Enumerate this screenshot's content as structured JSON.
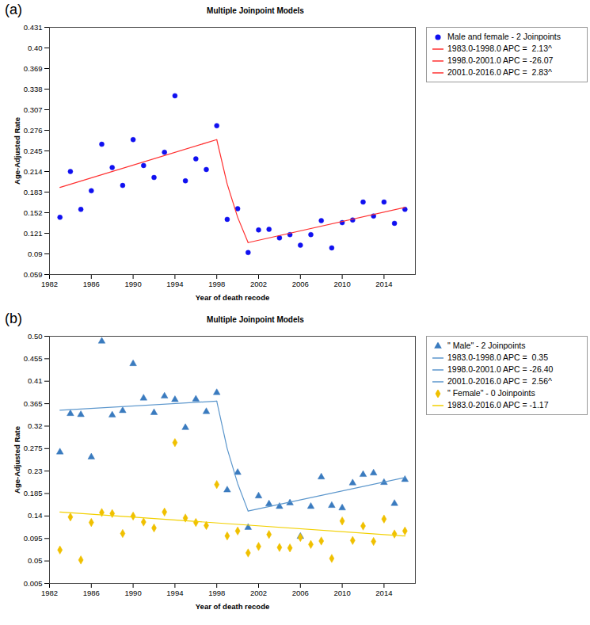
{
  "chart_data": [
    {
      "type": "scatter",
      "panel_label": "(a)",
      "title": "Multiple Joinpoint Models",
      "x_label": "Year of death recode",
      "y_label": "Age-Adjusted Rate",
      "legend": "right",
      "xlim": [
        1982,
        2017
      ],
      "xticks": [
        1982,
        1986,
        1990,
        1994,
        1998,
        2002,
        2006,
        2010,
        2014
      ],
      "ylim": [
        0.059,
        0.431
      ],
      "yticks": [
        0.059,
        0.09,
        0.121,
        0.152,
        0.183,
        0.214,
        0.245,
        0.276,
        0.307,
        0.338,
        0.369,
        {
          "value": 0.4,
          "label": "0.40"
        },
        0.431
      ],
      "series": [
        {
          "name": "Male and female - 2 Joinpoints",
          "type": "scatter",
          "marker": "circle",
          "color": "#1010f0",
          "x": [
            1983,
            1984,
            1985,
            1986,
            1987,
            1988,
            1989,
            1990,
            1991,
            1992,
            1993,
            1994,
            1995,
            1996,
            1997,
            1998,
            1999,
            2000,
            2001,
            2002,
            2003,
            2004,
            2005,
            2006,
            2007,
            2008,
            2009,
            2010,
            2011,
            2012,
            2013,
            2014,
            2015,
            2016
          ],
          "values": [
            0.145,
            0.214,
            0.157,
            0.185,
            0.255,
            0.22,
            0.193,
            0.262,
            0.223,
            0.205,
            0.243,
            0.328,
            0.2,
            0.233,
            0.217,
            0.283,
            0.142,
            0.158,
            0.092,
            0.126,
            0.127,
            0.114,
            0.119,
            0.103,
            0.119,
            0.14,
            0.099,
            0.137,
            0.141,
            0.168,
            0.147,
            0.168,
            0.136,
            0.157
          ]
        },
        {
          "name": "1983.0-1998.0 APC =  2.13^",
          "type": "line",
          "color": "#ff3030",
          "x": [
            1983,
            1998
          ],
          "values": [
            0.19,
            0.262
          ]
        },
        {
          "name": "1998.0-2001.0 APC = -26.07",
          "type": "line",
          "color": "#ff3030",
          "x": [
            1998,
            1999,
            2000,
            2001
          ],
          "values": [
            0.262,
            0.195,
            0.145,
            0.107
          ]
        },
        {
          "name": "2001.0-2016.0 APC =  2.83^",
          "type": "line",
          "color": "#ff3030",
          "x": [
            2001,
            2016
          ],
          "values": [
            0.107,
            0.16
          ]
        }
      ]
    },
    {
      "type": "scatter",
      "panel_label": "(b)",
      "title": "Multiple Joinpoint Models",
      "x_label": "Year of death recode",
      "y_label": "Age-Adjusted Rate",
      "legend": "right",
      "xlim": [
        1982,
        2017
      ],
      "xticks": [
        1982,
        1986,
        1990,
        1994,
        1998,
        2002,
        2006,
        2010,
        2014
      ],
      "ylim": [
        0.005,
        0.5
      ],
      "yticks": [
        0.005,
        0.05,
        0.095,
        0.14,
        0.185,
        0.23,
        0.275,
        0.32,
        0.365,
        0.41,
        0.455,
        {
          "value": 0.5,
          "label": "0.50"
        }
      ],
      "series": [
        {
          "name": "\" Male\" - 2 Joinpoints",
          "type": "scatter",
          "marker": "triangle",
          "color": "#3a7bbf",
          "x": [
            1983,
            1984,
            1985,
            1986,
            1987,
            1988,
            1989,
            1990,
            1991,
            1992,
            1993,
            1994,
            1995,
            1996,
            1997,
            1998,
            1999,
            2000,
            2001,
            2002,
            2003,
            2004,
            2005,
            2006,
            2007,
            2008,
            2009,
            2010,
            2011,
            2012,
            2013,
            2014,
            2015,
            2016
          ],
          "values": [
            0.268,
            0.345,
            0.343,
            0.258,
            0.49,
            0.342,
            0.351,
            0.445,
            0.376,
            0.347,
            0.38,
            0.373,
            0.317,
            0.374,
            0.349,
            0.387,
            0.192,
            0.227,
            0.117,
            0.18,
            0.164,
            0.159,
            0.166,
            0.099,
            0.159,
            0.218,
            0.161,
            0.156,
            0.206,
            0.223,
            0.226,
            0.207,
            0.165,
            0.213
          ]
        },
        {
          "name": "1983.0-1998.0 APC =  0.35",
          "type": "line",
          "color": "#5b96cc",
          "x": [
            1983,
            1998
          ],
          "values": [
            0.352,
            0.37
          ]
        },
        {
          "name": "1998.0-2001.0 APC = -26.40",
          "type": "line",
          "color": "#5b96cc",
          "x": [
            1998,
            1999,
            2000,
            2001
          ],
          "values": [
            0.37,
            0.275,
            0.205,
            0.15
          ]
        },
        {
          "name": "2001.0-2016.0 APC =  2.56^",
          "type": "line",
          "color": "#5b96cc",
          "x": [
            2001,
            2016
          ],
          "values": [
            0.15,
            0.217
          ]
        },
        {
          "name": "\" Female\" - 0 Joinpoints",
          "type": "scatter",
          "marker": "diamond",
          "color": "#f0c000",
          "x": [
            1983,
            1984,
            1985,
            1986,
            1987,
            1988,
            1989,
            1990,
            1991,
            1992,
            1993,
            1994,
            1995,
            1996,
            1997,
            1998,
            1999,
            2000,
            2001,
            2002,
            2003,
            2004,
            2005,
            2006,
            2007,
            2008,
            2009,
            2010,
            2011,
            2012,
            2013,
            2014,
            2015,
            2016
          ],
          "values": [
            0.072,
            0.138,
            0.052,
            0.127,
            0.147,
            0.145,
            0.105,
            0.14,
            0.128,
            0.116,
            0.148,
            0.287,
            0.136,
            0.127,
            0.121,
            0.203,
            0.1,
            0.11,
            0.066,
            0.079,
            0.103,
            0.077,
            0.076,
            0.097,
            0.083,
            0.09,
            0.055,
            0.13,
            0.091,
            0.12,
            0.089,
            0.134,
            0.104,
            0.11
          ]
        },
        {
          "name": "1983.0-2016.0 APC = -1.17",
          "type": "line",
          "color": "#f2d000",
          "x": [
            1983,
            2016
          ],
          "values": [
            0.148,
            0.1
          ]
        }
      ]
    }
  ]
}
